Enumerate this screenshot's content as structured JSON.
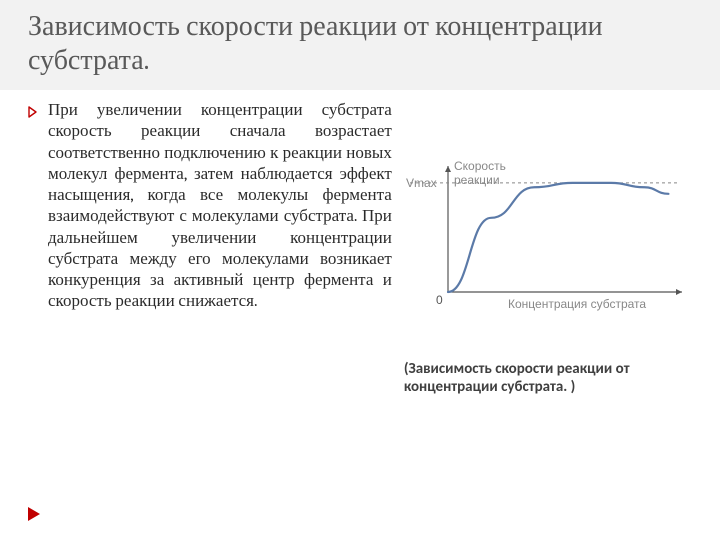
{
  "title": "Зависимость скорости реакции  от концентрации субстрата.",
  "bullet": {
    "text": "При увеличении концентрации субстрата скорость реакции сначала возрастает соответственно подключению к реакции новых молекул фермента, затем наблюдается эффект насыщения, когда все молекулы фермента взаимодействуют с молекулами субстрата. При дальнейшем увеличении концентрации субстрата между его молекулами возникает конкуренция за активный центр фермента и скорость реакции снижается."
  },
  "caption": "(Зависимость скорости реакции от концентрации субстрата. )",
  "chart": {
    "type": "line",
    "y_label": "Скорость\nреакции",
    "x_label": "Концентрация субстрата",
    "vmax_label": "Vmax",
    "origin_label": "0",
    "axis_color": "#555555",
    "curve_color": "#5b7aa8",
    "label_color": "#888888",
    "dash_color": "#888888",
    "curve_points": [
      [
        0,
        0
      ],
      [
        45,
        68
      ],
      [
        90,
        96
      ],
      [
        130,
        100
      ],
      [
        170,
        100
      ],
      [
        205,
        96
      ],
      [
        230,
        90
      ]
    ],
    "vmax_y": 100,
    "x_range": 240,
    "y_range": 110
  },
  "accent_color": "#c00000"
}
